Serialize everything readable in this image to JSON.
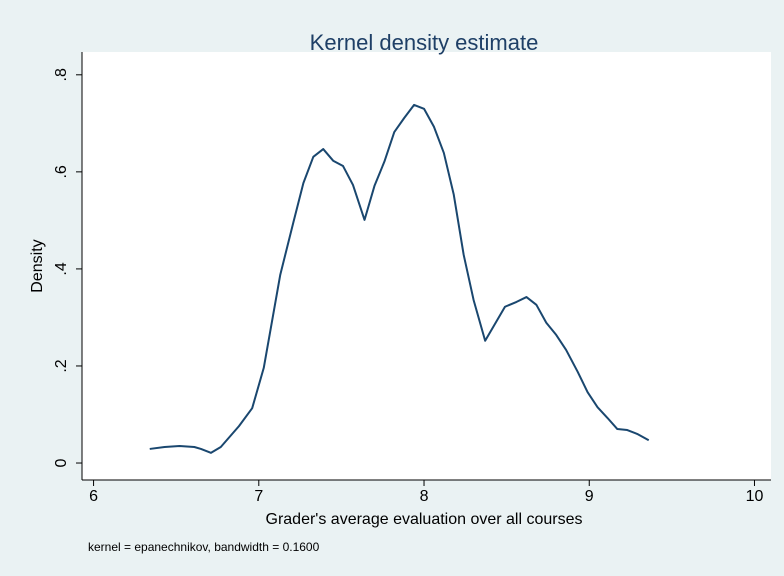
{
  "chart_data": {
    "type": "line",
    "title": "Kernel density estimate",
    "x_label": "Grader's average evaluation over all courses",
    "y_label": "Density",
    "note": "kernel = epanechnikov, bandwidth = 0.1600",
    "x": [
      6.34,
      6.43,
      6.52,
      6.61,
      6.65,
      6.71,
      6.77,
      6.88,
      6.96,
      7.03,
      7.13,
      7.21,
      7.27,
      7.33,
      7.39,
      7.45,
      7.51,
      7.57,
      7.64,
      7.7,
      7.76,
      7.82,
      7.88,
      7.94,
      8.0,
      8.06,
      8.12,
      8.18,
      8.24,
      8.3,
      8.37,
      8.43,
      8.49,
      8.56,
      8.62,
      8.68,
      8.74,
      8.8,
      8.86,
      8.93,
      8.99,
      9.05,
      9.11,
      9.17,
      9.23,
      9.29,
      9.36
    ],
    "series": [
      {
        "color": "#1a476f",
        "values": [
          0.029,
          0.033,
          0.035,
          0.033,
          0.029,
          0.021,
          0.033,
          0.076,
          0.113,
          0.196,
          0.388,
          0.497,
          0.577,
          0.631,
          0.647,
          0.623,
          0.612,
          0.573,
          0.501,
          0.571,
          0.621,
          0.682,
          0.711,
          0.738,
          0.73,
          0.693,
          0.639,
          0.553,
          0.429,
          0.336,
          0.252,
          0.287,
          0.322,
          0.332,
          0.342,
          0.326,
          0.289,
          0.264,
          0.233,
          0.188,
          0.146,
          0.115,
          0.093,
          0.07,
          0.068,
          0.06,
          0.047
        ]
      }
    ],
    "xlim": [
      5.93,
      10.1
    ],
    "ylim": [
      -0.035,
      0.847
    ],
    "xticks": [
      6,
      7,
      8,
      9,
      10
    ],
    "yticks": [
      0,
      {
        "value": 0.2,
        "label": ".2"
      },
      {
        "value": 0.4,
        "label": ".4"
      },
      {
        "value": 0.6,
        "label": ".6"
      },
      {
        "value": 0.8,
        "label": ".8"
      }
    ]
  }
}
